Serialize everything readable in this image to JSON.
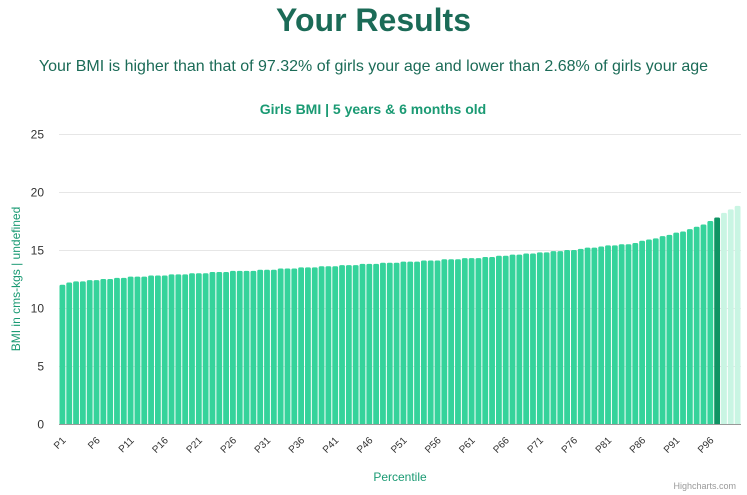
{
  "page": {
    "title": "Your Results",
    "summary": "Your BMI is higher than that of 97.32% of girls your age and lower than 2.68% of girls your age"
  },
  "colors": {
    "title": "#1b6b57",
    "accent": "#1a9a73",
    "bar": "#35d39b",
    "highlight": "#0f9464",
    "above": "#c9f5e3",
    "grid": "#e6e6e6"
  },
  "credits": "Highcharts.com",
  "chart_data": {
    "type": "bar",
    "title": "Girls BMI | 5 years & 6 months old",
    "xlabel": "Percentile",
    "ylabel": "BMI in cms-kgs | undefined",
    "ylim": [
      0,
      25
    ],
    "yticks": [
      0,
      5,
      10,
      15,
      20,
      25
    ],
    "grid": true,
    "tick_labels": [
      "P1",
      "P6",
      "P11",
      "P16",
      "P21",
      "P26",
      "P31",
      "P36",
      "P41",
      "P46",
      "P51",
      "P56",
      "P61",
      "P66",
      "P71",
      "P76",
      "P81",
      "P86",
      "P91",
      "P96"
    ],
    "tick_every": 5,
    "highlight_index": 96,
    "categories": [
      "P1",
      "P2",
      "P3",
      "P4",
      "P5",
      "P6",
      "P7",
      "P8",
      "P9",
      "P10",
      "P11",
      "P12",
      "P13",
      "P14",
      "P15",
      "P16",
      "P17",
      "P18",
      "P19",
      "P20",
      "P21",
      "P22",
      "P23",
      "P24",
      "P25",
      "P26",
      "P27",
      "P28",
      "P29",
      "P30",
      "P31",
      "P32",
      "P33",
      "P34",
      "P35",
      "P36",
      "P37",
      "P38",
      "P39",
      "P40",
      "P41",
      "P42",
      "P43",
      "P44",
      "P45",
      "P46",
      "P47",
      "P48",
      "P49",
      "P50",
      "P51",
      "P52",
      "P53",
      "P54",
      "P55",
      "P56",
      "P57",
      "P58",
      "P59",
      "P60",
      "P61",
      "P62",
      "P63",
      "P64",
      "P65",
      "P66",
      "P67",
      "P68",
      "P69",
      "P70",
      "P71",
      "P72",
      "P73",
      "P74",
      "P75",
      "P76",
      "P77",
      "P78",
      "P79",
      "P80",
      "P81",
      "P82",
      "P83",
      "P84",
      "P85",
      "P86",
      "P87",
      "P88",
      "P89",
      "P90",
      "P91",
      "P92",
      "P93",
      "P94",
      "P95",
      "P96",
      "P97",
      "P98",
      "P99",
      "P100"
    ],
    "values": [
      12.0,
      12.2,
      12.3,
      12.3,
      12.4,
      12.4,
      12.5,
      12.5,
      12.6,
      12.6,
      12.7,
      12.7,
      12.7,
      12.8,
      12.8,
      12.8,
      12.9,
      12.9,
      12.9,
      13.0,
      13.0,
      13.0,
      13.1,
      13.1,
      13.1,
      13.2,
      13.2,
      13.2,
      13.2,
      13.3,
      13.3,
      13.3,
      13.4,
      13.4,
      13.4,
      13.5,
      13.5,
      13.5,
      13.6,
      13.6,
      13.6,
      13.7,
      13.7,
      13.7,
      13.8,
      13.8,
      13.8,
      13.9,
      13.9,
      13.9,
      14.0,
      14.0,
      14.0,
      14.1,
      14.1,
      14.1,
      14.2,
      14.2,
      14.2,
      14.3,
      14.3,
      14.3,
      14.4,
      14.4,
      14.5,
      14.5,
      14.6,
      14.6,
      14.7,
      14.7,
      14.8,
      14.8,
      14.9,
      14.9,
      15.0,
      15.0,
      15.1,
      15.2,
      15.2,
      15.3,
      15.4,
      15.4,
      15.5,
      15.5,
      15.6,
      15.8,
      15.9,
      16.0,
      16.2,
      16.3,
      16.5,
      16.6,
      16.8,
      17.0,
      17.2,
      17.5,
      17.8,
      18.2,
      18.5,
      18.8
    ]
  }
}
